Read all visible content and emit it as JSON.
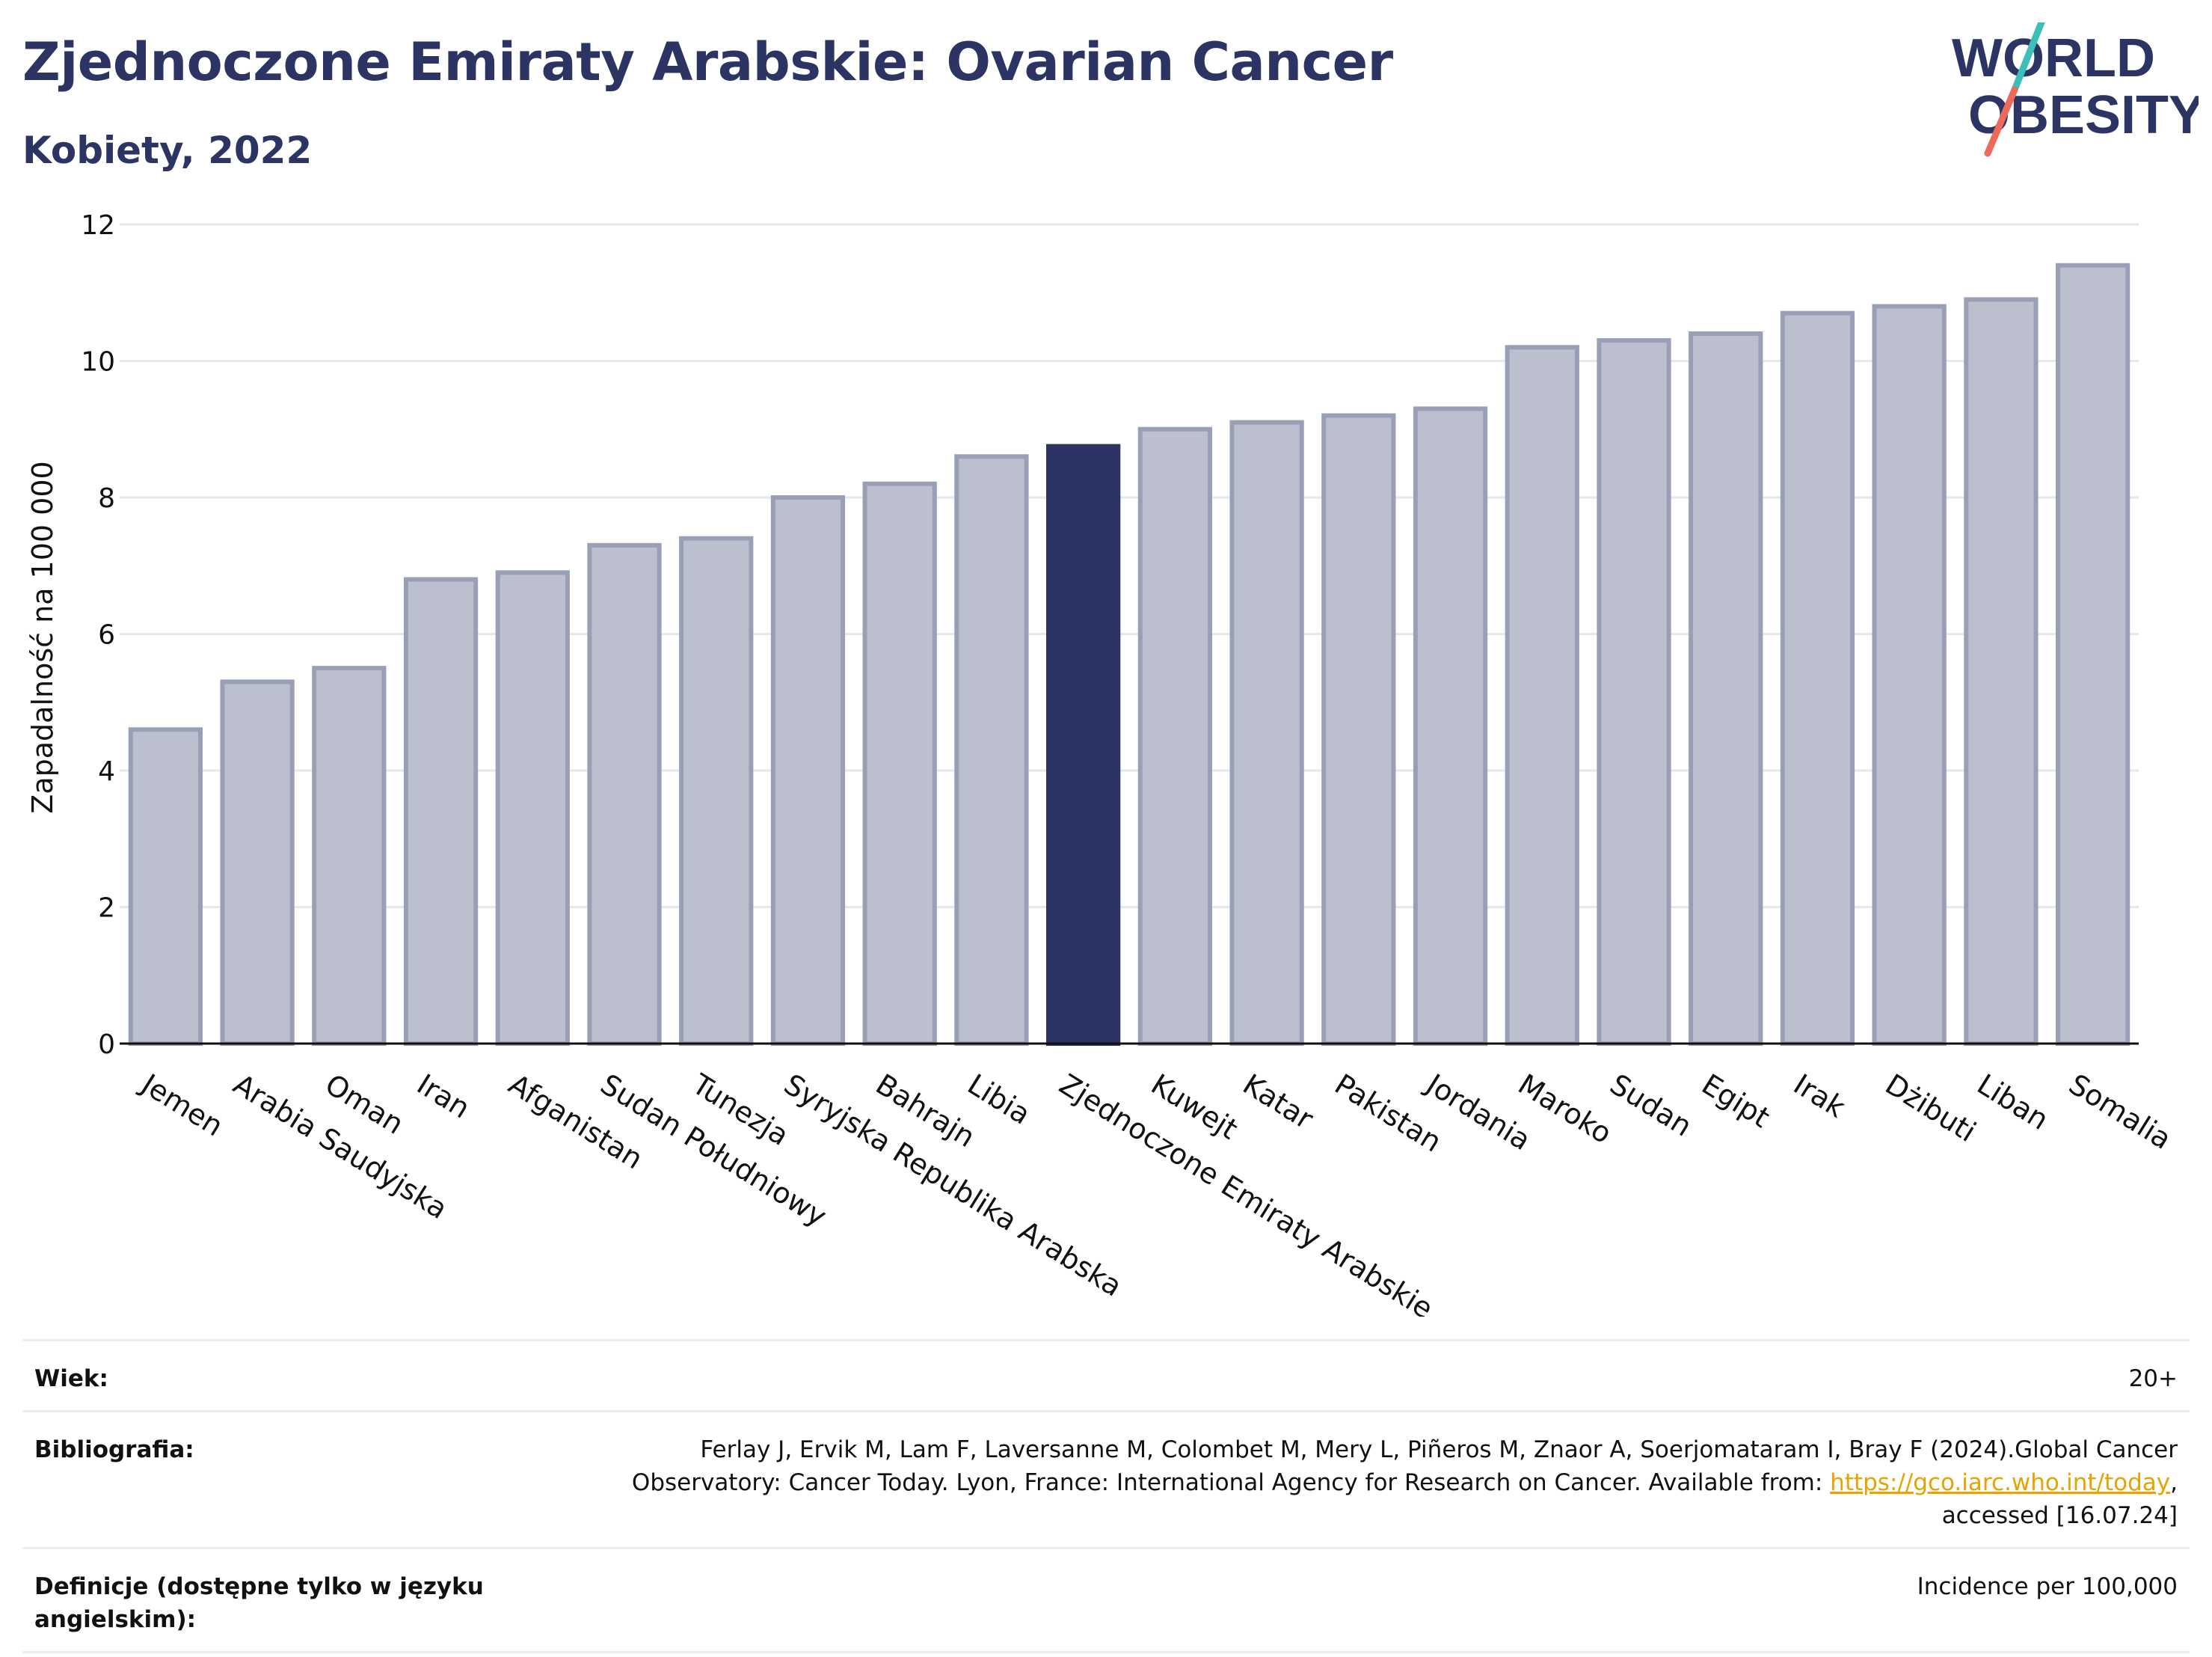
{
  "header": {
    "title": "Zjednoczone Emiraty Arabskie: Ovarian Cancer",
    "subtitle": "Kobiety, 2022"
  },
  "logo": {
    "line1": "WORLD",
    "line2": "OBESITY",
    "colors": {
      "text": "#2b3462",
      "slash_top": "#3bbfb6",
      "slash_bottom": "#ec6a5c"
    }
  },
  "colors": {
    "bar": "#bcc0ce",
    "bar_border": "#9a9fb8",
    "highlight": "#2b3462",
    "grid": "#e6e7ec",
    "axis": "#111111"
  },
  "chart_data": {
    "type": "bar",
    "title": "Zjednoczone Emiraty Arabskie: Ovarian Cancer",
    "subtitle": "Kobiety, 2022",
    "ylabel": "Zapadalność na 100 000",
    "xlabel": "",
    "ylim": [
      0,
      12
    ],
    "yticks": [
      0,
      2,
      4,
      6,
      8,
      10,
      12
    ],
    "grid": true,
    "highlight": "Zjednoczone Emiraty Arabskie",
    "categories": [
      "Jemen",
      "Arabia Saudyjska",
      "Oman",
      "Iran",
      "Afganistan",
      "Sudan Południowy",
      "Tunezja",
      "Syryjska Republika Arabska",
      "Bahrajn",
      "Libia",
      "Zjednoczone Emiraty Arabskie",
      "Kuwejt",
      "Katar",
      "Pakistan",
      "Jordania",
      "Maroko",
      "Sudan",
      "Egipt",
      "Irak",
      "Dżibuti",
      "Liban",
      "Somalia"
    ],
    "values": [
      4.6,
      5.3,
      5.5,
      6.8,
      6.9,
      7.3,
      7.4,
      8.0,
      8.2,
      8.6,
      8.75,
      9.0,
      9.1,
      9.2,
      9.3,
      10.2,
      10.3,
      10.4,
      10.7,
      10.8,
      10.9,
      11.4
    ]
  },
  "info": {
    "rows": [
      {
        "label": "Wiek:",
        "value": "20+"
      },
      {
        "label": "Bibliografia:",
        "value_line1": "Ferlay J, Ervik M, Lam F, Laversanne M, Colombet M, Mery L, Piñeros M, Znaor A, Soerjomataram I, Bray F (2024).Global Cancer",
        "value_line2_pre": "Observatory: Cancer Today. Lyon, France: International Agency for Research on Cancer. Available from: ",
        "link": "https://gco.iarc.who.int/today",
        "value_line2_post": ",",
        "value_line3": "accessed [16.07.24]"
      },
      {
        "label": "Definicje (dostępne tylko w języku angielskim):",
        "value": "Incidence per 100,000"
      }
    ]
  }
}
